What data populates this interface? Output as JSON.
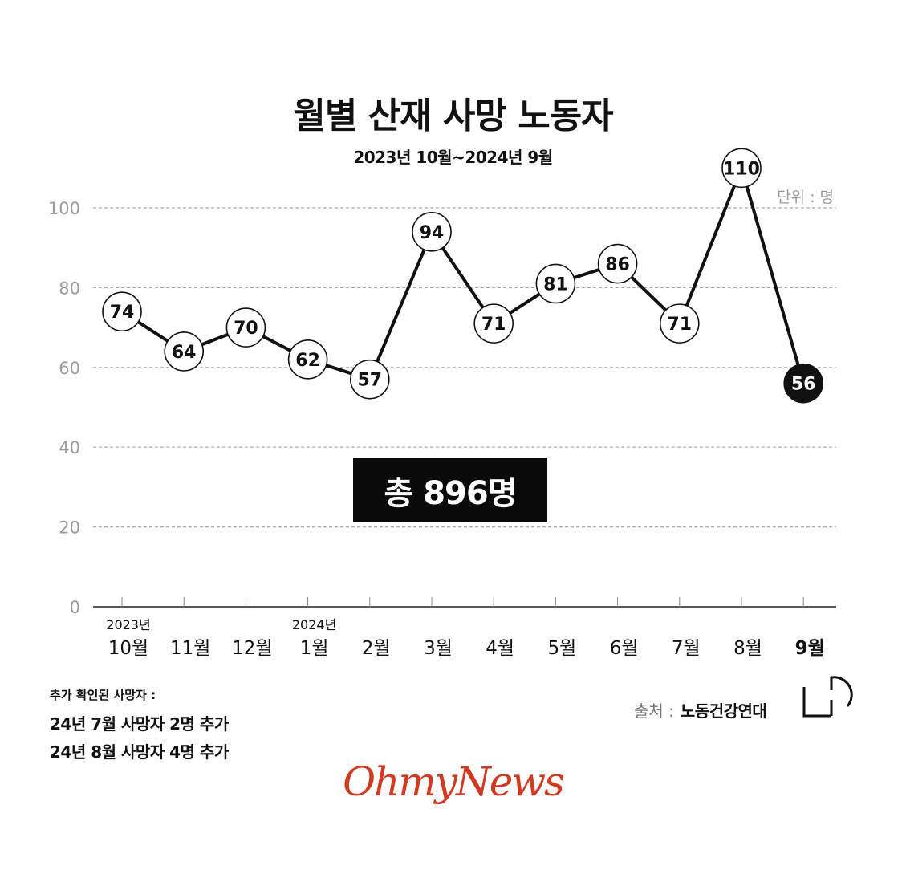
{
  "title": "월별 산재 사망 노동자",
  "subtitle": "2023년 10월~2024년 9월",
  "unit_label": "단위 : 명",
  "total_label": "총 896명",
  "notes": {
    "heading": "추가 확인된 사망자 :",
    "lines": [
      "24년 7월 사망자 2명 추가",
      "24년 8월 사망자 4명 추가"
    ]
  },
  "source": {
    "label": "출처 :",
    "name": "노동건강연대"
  },
  "brand": "OhmyNews",
  "colors": {
    "line": "#111111",
    "marker_fill": "#ffffff",
    "highlight_fill": "#111111",
    "grid": "#aaaaaa",
    "axis_text": "#9a9a9a",
    "brand": "#d13a20"
  },
  "chart_data": {
    "type": "line",
    "title": "월별 산재 사망 노동자",
    "subtitle": "2023년 10월~2024년 9월",
    "unit": "단위 : 명",
    "categories": [
      "10월",
      "11월",
      "12월",
      "1월",
      "2월",
      "3월",
      "4월",
      "5월",
      "6월",
      "7월",
      "8월",
      "9월"
    ],
    "year_labels": [
      {
        "index": 0,
        "label": "2023년"
      },
      {
        "index": 3,
        "label": "2024년"
      }
    ],
    "series": [
      {
        "values": [
          74,
          64,
          70,
          62,
          57,
          94,
          71,
          81,
          86,
          71,
          110,
          56
        ]
      }
    ],
    "highlight_index": 11,
    "y_ticks": [
      0,
      20,
      40,
      60,
      80,
      100
    ],
    "ylim": [
      0,
      110
    ],
    "grid": "dashed horizontal"
  }
}
